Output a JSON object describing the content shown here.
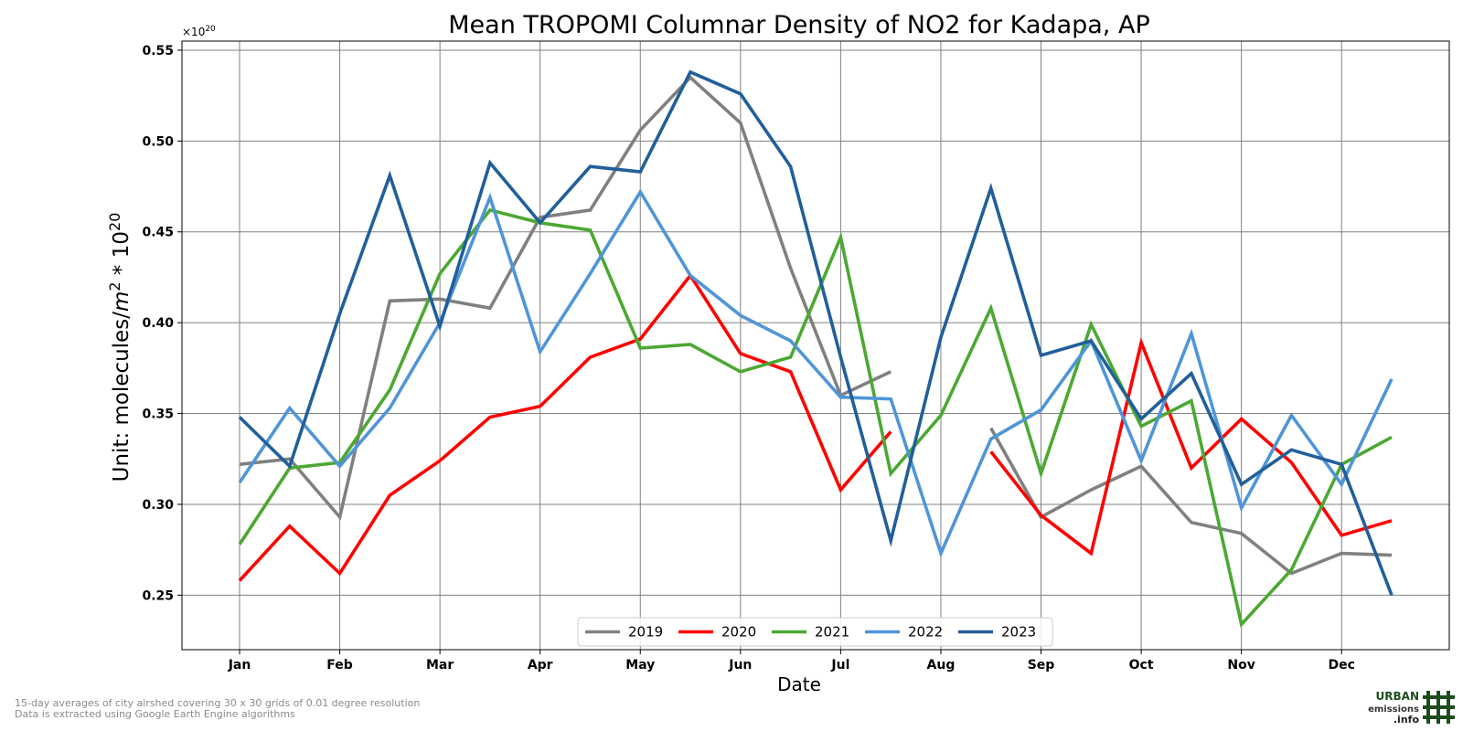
{
  "chart_data": {
    "type": "line",
    "title": "Mean TROPOMI Columnar Density of NO2 for Kadapa, AP",
    "xlabel": "Date",
    "ylabel_main": "Unit: molecules/",
    "ylabel_m": "m",
    "ylabel_m_exp": "2",
    "ylabel_mult": " * 10",
    "ylabel_mult_exp": "20",
    "offset_base": "×10",
    "offset_exp": "20",
    "ylim": [
      0.22,
      0.555
    ],
    "yticks": [
      "0.25",
      "0.30",
      "0.35",
      "0.40",
      "0.45",
      "0.50",
      "0.55"
    ],
    "ytick_values": [
      0.25,
      0.3,
      0.35,
      0.4,
      0.45,
      0.5,
      0.55
    ],
    "xticks": [
      "Jan",
      "Feb",
      "Mar",
      "Apr",
      "May",
      "Jun",
      "Jul",
      "Aug",
      "Sep",
      "Oct",
      "Nov",
      "Dec"
    ],
    "x_points": [
      "Jan 01",
      "Jan 16",
      "Feb 01",
      "Feb 16",
      "Mar 01",
      "Mar 16",
      "Apr 01",
      "Apr 16",
      "May 01",
      "May 16",
      "Jun 01",
      "Jun 16",
      "Jul 01",
      "Jul 16",
      "Aug 01",
      "Aug 16",
      "Sep 01",
      "Sep 16",
      "Oct 01",
      "Oct 16",
      "Nov 01",
      "Nov 16",
      "Dec 01",
      "Dec 16"
    ],
    "grid": true,
    "legend_position": "bottom-center",
    "series": [
      {
        "name": "2019",
        "color": "#808080",
        "values": [
          0.322,
          0.325,
          0.293,
          0.412,
          0.413,
          0.408,
          0.458,
          0.462,
          0.506,
          0.535,
          0.51,
          0.43,
          0.36,
          0.373,
          null,
          0.342,
          0.293,
          0.308,
          0.321,
          0.29,
          0.284,
          0.262,
          0.273,
          0.272
        ]
      },
      {
        "name": "2020",
        "color": "#ff0000",
        "values": [
          0.258,
          0.288,
          0.262,
          0.305,
          0.324,
          0.348,
          0.354,
          0.381,
          0.391,
          0.426,
          0.383,
          0.373,
          0.308,
          0.34,
          null,
          0.329,
          0.294,
          0.273,
          0.389,
          0.32,
          0.347,
          0.323,
          0.283,
          0.291
        ]
      },
      {
        "name": "2021",
        "color": "#4ca832",
        "values": [
          0.278,
          0.32,
          0.323,
          0.363,
          0.427,
          0.462,
          0.455,
          0.451,
          0.386,
          0.388,
          0.373,
          0.381,
          0.447,
          0.317,
          0.349,
          0.408,
          0.317,
          0.399,
          0.343,
          0.357,
          0.234,
          0.264,
          0.322,
          0.337
        ]
      },
      {
        "name": "2022",
        "color": "#4f95d8",
        "values": [
          0.312,
          0.353,
          0.321,
          0.353,
          0.4,
          0.469,
          0.384,
          0.427,
          0.472,
          0.426,
          0.404,
          0.39,
          0.359,
          0.358,
          0.273,
          0.336,
          0.352,
          0.39,
          0.324,
          0.394,
          0.298,
          0.349,
          0.311,
          0.369
        ]
      },
      {
        "name": "2023",
        "color": "#215f9a",
        "values": [
          0.348,
          0.321,
          0.405,
          0.481,
          0.398,
          0.488,
          0.455,
          0.486,
          0.483,
          0.538,
          0.526,
          0.486,
          0.381,
          0.28,
          0.392,
          0.474,
          0.382,
          0.39,
          0.347,
          0.372,
          0.311,
          0.33,
          0.322,
          0.25
        ]
      }
    ]
  },
  "footer": {
    "line1": "15-day averages of city airshed covering 30 x 30 grids of 0.01 degree resolution",
    "line2": "Data is extracted using Google Earth Engine algorithms"
  },
  "logo": {
    "word1": "URBAN",
    "word2": "emissions",
    "word3": ".info",
    "color": "#1d4d1d"
  }
}
